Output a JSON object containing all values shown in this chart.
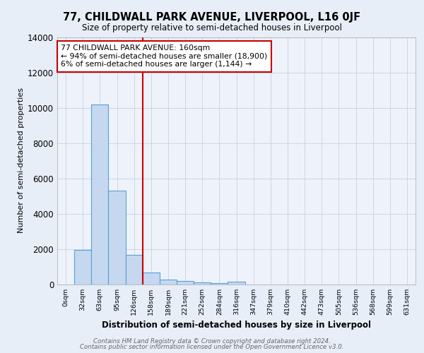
{
  "title": "77, CHILDWALL PARK AVENUE, LIVERPOOL, L16 0JF",
  "subtitle": "Size of property relative to semi-detached houses in Liverpool",
  "xlabel": "Distribution of semi-detached houses by size in Liverpool",
  "ylabel": "Number of semi-detached properties",
  "bar_labels": [
    "0sqm",
    "32sqm",
    "63sqm",
    "95sqm",
    "126sqm",
    "158sqm",
    "189sqm",
    "221sqm",
    "252sqm",
    "284sqm",
    "316sqm",
    "347sqm",
    "379sqm",
    "410sqm",
    "442sqm",
    "473sqm",
    "505sqm",
    "536sqm",
    "568sqm",
    "599sqm",
    "631sqm"
  ],
  "bar_values": [
    0,
    1950,
    10200,
    5300,
    1650,
    650,
    280,
    170,
    100,
    70,
    130,
    0,
    0,
    0,
    0,
    0,
    0,
    0,
    0,
    0,
    0
  ],
  "bar_color": "#c5d8f0",
  "bar_edge_color": "#5a9fd4",
  "annotation_text": "77 CHILDWALL PARK AVENUE: 160sqm\n← 94% of semi-detached houses are smaller (18,900)\n6% of semi-detached houses are larger (1,144) →",
  "vline_color": "#cc0000",
  "vline_x": 4.5,
  "ylim": [
    0,
    14000
  ],
  "yticks": [
    0,
    2000,
    4000,
    6000,
    8000,
    10000,
    12000,
    14000
  ],
  "footer_line1": "Contains HM Land Registry data © Crown copyright and database right 2024.",
  "footer_line2": "Contains public sector information licensed under the Open Government Licence v3.0.",
  "background_color": "#e8eef8",
  "plot_bg_color": "#eef3fb",
  "grid_color": "#c8d0e0"
}
